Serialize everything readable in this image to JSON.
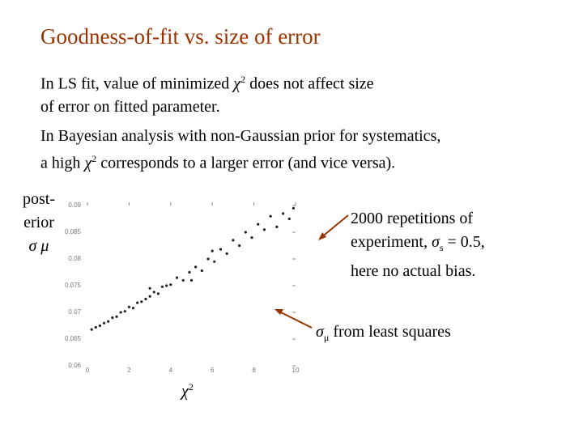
{
  "title": "Goodness-of-fit vs. size of error",
  "paragraphs": [
    {
      "parts": [
        "In LS fit, value of minimized ",
        "χ",
        "2",
        " does not affect size",
        "of error on fitted parameter."
      ]
    },
    {
      "parts": [
        "In Bayesian analysis with non-Gaussian prior for systematics,",
        "a high ",
        "χ",
        "2",
        " corresponds to a larger error (and vice versa)."
      ]
    }
  ],
  "y_label": [
    "post-",
    "erior",
    "σ",
    "μ"
  ],
  "x_label": [
    "χ",
    "2"
  ],
  "annotation_repetitions": [
    "2000 repetitions of",
    "experiment, ",
    "σ",
    "s",
    " = 0.5,",
    "here no actual bias."
  ],
  "annotation_ls": [
    "σ",
    "μ",
    " from least squares"
  ],
  "chart_data": {
    "type": "scatter",
    "x": [
      0.2,
      0.4,
      0.6,
      0.8,
      1.0,
      1.2,
      1.4,
      1.6,
      1.8,
      2.0,
      2.2,
      2.4,
      2.6,
      2.8,
      3.0,
      3.2,
      3.4,
      3.6,
      3.8,
      4.0,
      4.3,
      4.6,
      4.9,
      5.2,
      5.5,
      5.8,
      6.1,
      6.4,
      6.7,
      7.0,
      7.3,
      7.6,
      7.9,
      8.2,
      8.5,
      8.8,
      9.1,
      9.4,
      9.7,
      9.9,
      5.0,
      3.0,
      6.0
    ],
    "values": [
      0.0668,
      0.0672,
      0.0675,
      0.068,
      0.0683,
      0.069,
      0.0692,
      0.07,
      0.0702,
      0.071,
      0.0708,
      0.0718,
      0.072,
      0.0725,
      0.073,
      0.0738,
      0.0735,
      0.0748,
      0.075,
      0.0752,
      0.0765,
      0.076,
      0.0775,
      0.0785,
      0.0778,
      0.08,
      0.0795,
      0.0818,
      0.081,
      0.0835,
      0.0825,
      0.085,
      0.084,
      0.0865,
      0.0855,
      0.088,
      0.086,
      0.0885,
      0.0875,
      0.0895,
      0.076,
      0.0745,
      0.0815
    ],
    "color": "#222222",
    "xlim": [
      0,
      10
    ],
    "ylim": [
      0.06,
      0.09
    ],
    "xticks": [
      0,
      2,
      4,
      6,
      8,
      10
    ],
    "yticks": [
      0.06,
      0.065,
      0.07,
      0.075,
      0.08,
      0.085,
      0.09
    ]
  }
}
